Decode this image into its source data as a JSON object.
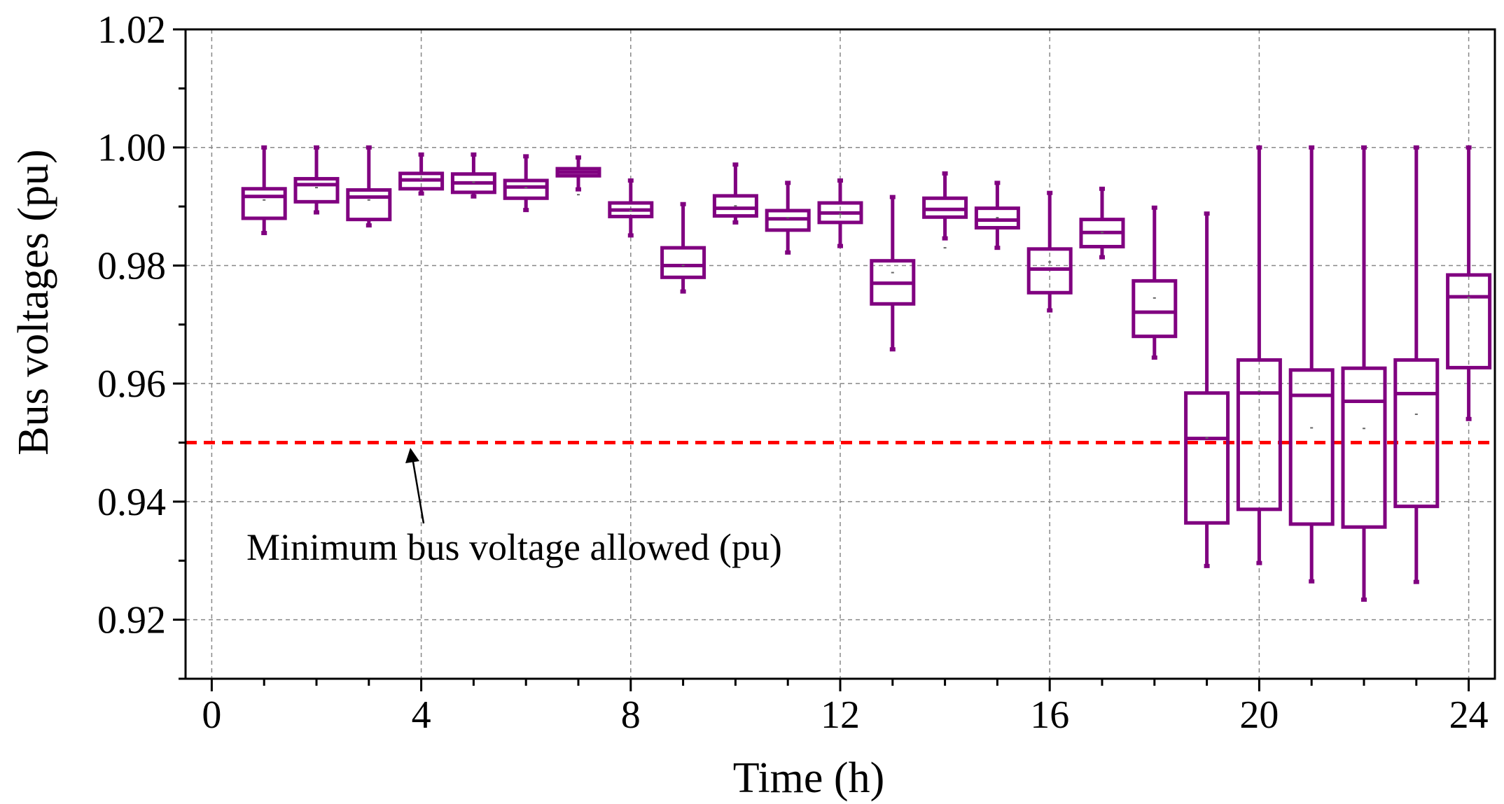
{
  "chart_data": {
    "type": "box",
    "title": "",
    "xlabel": "Time (h)",
    "ylabel": "Bus voltages (pu)",
    "xlim": [
      -0.5,
      24.5
    ],
    "ylim": [
      0.91,
      1.02
    ],
    "xticks": [
      0,
      4,
      8,
      12,
      16,
      20,
      24
    ],
    "xtick_labels": [
      "0",
      "4",
      "8",
      "12",
      "16",
      "20",
      "24"
    ],
    "yticks": [
      0.92,
      0.94,
      0.96,
      0.98,
      1.0,
      1.02
    ],
    "ytick_labels": [
      "0.92",
      "0.94",
      "0.96",
      "0.98",
      "1.00",
      "1.02"
    ],
    "grid": true,
    "box_color": "#800080",
    "threshold": {
      "value": 0.95,
      "color": "#ff0000",
      "label": "Minimum bus voltage allowed (pu)"
    },
    "boxes": [
      {
        "hour": 1,
        "min": 0.9855,
        "q1": 0.988,
        "median": 0.9917,
        "q3": 0.993,
        "max": 1.0,
        "mean": 0.9911
      },
      {
        "hour": 2,
        "min": 0.989,
        "q1": 0.9908,
        "median": 0.9937,
        "q3": 0.9947,
        "max": 1.0,
        "mean": 0.9932
      },
      {
        "hour": 3,
        "min": 0.9868,
        "q1": 0.9878,
        "median": 0.9916,
        "q3": 0.9928,
        "max": 1.0,
        "mean": 0.9911
      },
      {
        "hour": 4,
        "min": 0.9922,
        "q1": 0.993,
        "median": 0.9945,
        "q3": 0.9956,
        "max": 0.9988,
        "mean": 0.9946
      },
      {
        "hour": 5,
        "min": 0.9917,
        "q1": 0.9924,
        "median": 0.994,
        "q3": 0.9955,
        "max": 0.9988,
        "mean": 0.9941
      },
      {
        "hour": 6,
        "min": 0.9894,
        "q1": 0.9914,
        "median": 0.9933,
        "q3": 0.9944,
        "max": 0.9985,
        "mean": 0.9932
      },
      {
        "hour": 7,
        "min": 0.9929,
        "q1": 0.9952,
        "median": 0.9958,
        "q3": 0.9964,
        "max": 0.9983,
        "mean": 0.992
      },
      {
        "hour": 8,
        "min": 0.9851,
        "q1": 0.9883,
        "median": 0.9894,
        "q3": 0.9906,
        "max": 0.9944,
        "mean": 0.9893
      },
      {
        "hour": 9,
        "min": 0.9756,
        "q1": 0.978,
        "median": 0.98,
        "q3": 0.983,
        "max": 0.9904,
        "mean": 0.98
      },
      {
        "hour": 10,
        "min": 0.9873,
        "q1": 0.9884,
        "median": 0.9897,
        "q3": 0.9918,
        "max": 0.9971,
        "mean": 0.9901
      },
      {
        "hour": 11,
        "min": 0.9822,
        "q1": 0.986,
        "median": 0.9879,
        "q3": 0.9893,
        "max": 0.994,
        "mean": 0.9881
      },
      {
        "hour": 12,
        "min": 0.9833,
        "q1": 0.9873,
        "median": 0.9889,
        "q3": 0.9906,
        "max": 0.9944,
        "mean": 0.9887
      },
      {
        "hour": 13,
        "min": 0.9658,
        "q1": 0.9735,
        "median": 0.977,
        "q3": 0.9808,
        "max": 0.9916,
        "mean": 0.9788
      },
      {
        "hour": 14,
        "min": 0.9846,
        "q1": 0.9882,
        "median": 0.9895,
        "q3": 0.9914,
        "max": 0.9956,
        "mean": 0.983
      },
      {
        "hour": 15,
        "min": 0.983,
        "q1": 0.9864,
        "median": 0.9877,
        "q3": 0.9897,
        "max": 0.994,
        "mean": 0.9881
      },
      {
        "hour": 16,
        "min": 0.9724,
        "q1": 0.9754,
        "median": 0.9794,
        "q3": 0.9828,
        "max": 0.9923,
        "mean": 0.9806
      },
      {
        "hour": 17,
        "min": 0.9814,
        "q1": 0.9832,
        "median": 0.9856,
        "q3": 0.9878,
        "max": 0.993,
        "mean": 0.9856
      },
      {
        "hour": 18,
        "min": 0.9644,
        "q1": 0.968,
        "median": 0.9721,
        "q3": 0.9774,
        "max": 0.9898,
        "mean": 0.9745
      },
      {
        "hour": 19,
        "min": 0.9291,
        "q1": 0.9364,
        "median": 0.9507,
        "q3": 0.9584,
        "max": 0.9888,
        "mean": 0.9508
      },
      {
        "hour": 20,
        "min": 0.9296,
        "q1": 0.9387,
        "median": 0.9584,
        "q3": 0.964,
        "max": 1.0,
        "mean": 0.9587
      },
      {
        "hour": 21,
        "min": 0.9265,
        "q1": 0.9362,
        "median": 0.958,
        "q3": 0.9623,
        "max": 1.0,
        "mean": 0.9525
      },
      {
        "hour": 22,
        "min": 0.9234,
        "q1": 0.9357,
        "median": 0.957,
        "q3": 0.9626,
        "max": 1.0,
        "mean": 0.9524
      },
      {
        "hour": 23,
        "min": 0.9264,
        "q1": 0.9392,
        "median": 0.9583,
        "q3": 0.964,
        "max": 1.0,
        "mean": 0.9548
      },
      {
        "hour": 24,
        "min": 0.954,
        "q1": 0.9627,
        "median": 0.9747,
        "q3": 0.9784,
        "max": 1.0,
        "mean": 0.9746
      }
    ]
  }
}
